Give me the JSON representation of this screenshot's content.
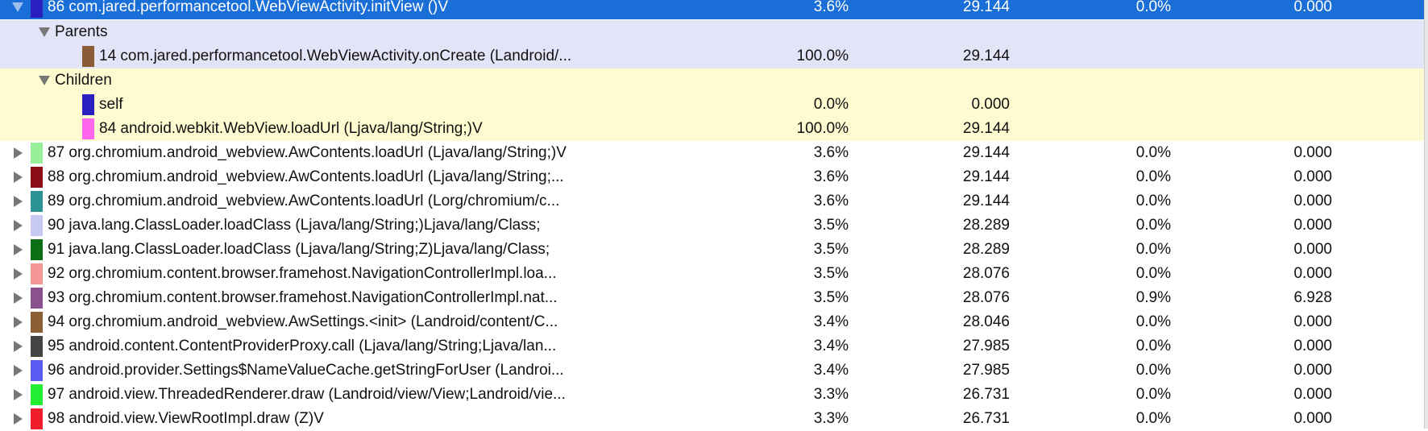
{
  "selected": {
    "name": "86 com.jared.performancetool.WebViewActivity.initView ()V",
    "color": "#2b1fbf",
    "incl_pct": "3.6%",
    "incl_time": "29.144",
    "excl_pct": "0.0%",
    "excl_time": "0.000"
  },
  "parents": {
    "label": "Parents",
    "items": [
      {
        "name": "14 com.jared.performancetool.WebViewActivity.onCreate (Landroid/...",
        "color": "#8b5a36",
        "pct": "100.0%",
        "time": "29.144"
      }
    ]
  },
  "children": {
    "label": "Children",
    "items": [
      {
        "name": "self",
        "color": "#2b1fbf",
        "pct": "0.0%",
        "time": "0.000"
      },
      {
        "name": "84 android.webkit.WebView.loadUrl (Ljava/lang/String;)V",
        "color": "#ff66f0",
        "pct": "100.0%",
        "time": "29.144"
      }
    ]
  },
  "rows": [
    {
      "name": "87 org.chromium.android_webview.AwContents.loadUrl (Ljava/lang/String;)V",
      "color": "#99ee99",
      "incl_pct": "3.6%",
      "incl_time": "29.144",
      "excl_pct": "0.0%",
      "excl_time": "0.000"
    },
    {
      "name": "88 org.chromium.android_webview.AwContents.loadUrl (Ljava/lang/String;...",
      "color": "#8b0a14",
      "incl_pct": "3.6%",
      "incl_time": "29.144",
      "excl_pct": "0.0%",
      "excl_time": "0.000"
    },
    {
      "name": "89 org.chromium.android_webview.AwContents.loadUrl (Lorg/chromium/c...",
      "color": "#2b9393",
      "incl_pct": "3.6%",
      "incl_time": "29.144",
      "excl_pct": "0.0%",
      "excl_time": "0.000"
    },
    {
      "name": "90 java.lang.ClassLoader.loadClass (Ljava/lang/String;)Ljava/lang/Class;",
      "color": "#c8c8f4",
      "incl_pct": "3.5%",
      "incl_time": "28.289",
      "excl_pct": "0.0%",
      "excl_time": "0.000"
    },
    {
      "name": "91 java.lang.ClassLoader.loadClass (Ljava/lang/String;Z)Ljava/lang/Class;",
      "color": "#0a6e14",
      "incl_pct": "3.5%",
      "incl_time": "28.289",
      "excl_pct": "0.0%",
      "excl_time": "0.000"
    },
    {
      "name": "92 org.chromium.content.browser.framehost.NavigationControllerImpl.loa...",
      "color": "#f59696",
      "incl_pct": "3.5%",
      "incl_time": "28.076",
      "excl_pct": "0.0%",
      "excl_time": "0.000"
    },
    {
      "name": "93 org.chromium.content.browser.framehost.NavigationControllerImpl.nat...",
      "color": "#8b5090",
      "incl_pct": "3.5%",
      "incl_time": "28.076",
      "excl_pct": "0.9%",
      "excl_time": "6.928"
    },
    {
      "name": "94 org.chromium.android_webview.AwSettings.<init> (Landroid/content/C...",
      "color": "#8b5e36",
      "incl_pct": "3.4%",
      "incl_time": "28.046",
      "excl_pct": "0.0%",
      "excl_time": "0.000"
    },
    {
      "name": "95 android.content.ContentProviderProxy.call (Ljava/lang/String;Ljava/lan...",
      "color": "#444444",
      "incl_pct": "3.4%",
      "incl_time": "27.985",
      "excl_pct": "0.0%",
      "excl_time": "0.000"
    },
    {
      "name": "96 android.provider.Settings$NameValueCache.getStringForUser (Landroi...",
      "color": "#5a5af0",
      "incl_pct": "3.4%",
      "incl_time": "27.985",
      "excl_pct": "0.0%",
      "excl_time": "0.000"
    },
    {
      "name": "97 android.view.ThreadedRenderer.draw (Landroid/view/View;Landroid/vie...",
      "color": "#22ee33",
      "incl_pct": "3.3%",
      "incl_time": "26.731",
      "excl_pct": "0.0%",
      "excl_time": "0.000"
    },
    {
      "name": "98 android.view.ViewRootImpl.draw (Z)V",
      "color": "#f01e28",
      "incl_pct": "3.3%",
      "incl_time": "26.731",
      "excl_pct": "0.0%",
      "excl_time": "0.000"
    }
  ]
}
